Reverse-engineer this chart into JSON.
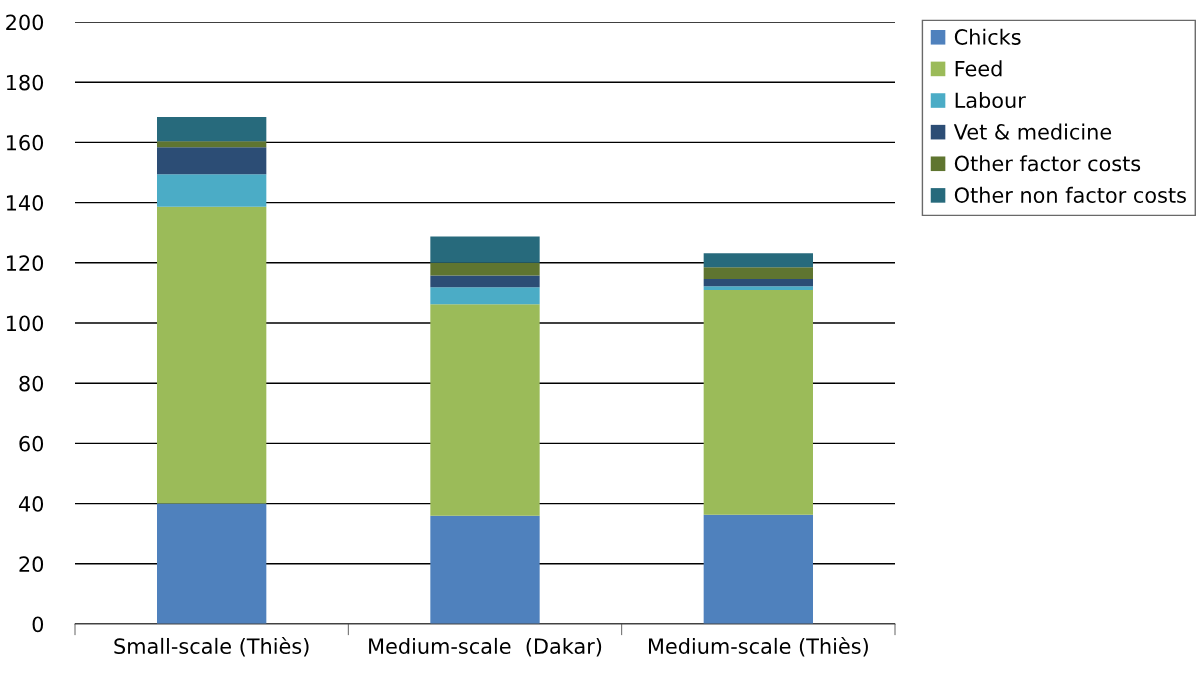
{
  "chart_data": {
    "type": "bar",
    "stacked": true,
    "categories": [
      "Small-scale (Thiès)",
      "Medium-scale  (Dakar)",
      "Medium-scale (Thiès)"
    ],
    "series": [
      {
        "name": "Chicks",
        "color": "#4f81bd",
        "values": [
          40,
          36,
          36.3
        ]
      },
      {
        "name": "Feed",
        "color": "#9bbb59",
        "values": [
          98.6,
          70.2,
          74.7
        ]
      },
      {
        "name": "Labour",
        "color": "#4bacc6",
        "values": [
          10.8,
          5.7,
          1.2
        ]
      },
      {
        "name": "Vet & medicine",
        "color": "#2c4d75",
        "values": [
          9,
          3.9,
          2.4
        ]
      },
      {
        "name": "Other factor costs",
        "color": "#5f7530",
        "values": [
          2,
          4.2,
          3.9
        ]
      },
      {
        "name": "Other non factor costs",
        "color": "#276a7c",
        "values": [
          8,
          8.7,
          4.7
        ]
      }
    ],
    "ylim": [
      0,
      200
    ],
    "yticks": [
      0,
      20,
      40,
      60,
      80,
      100,
      120,
      140,
      160,
      180,
      200
    ],
    "grid": "y",
    "legend": "top right"
  }
}
